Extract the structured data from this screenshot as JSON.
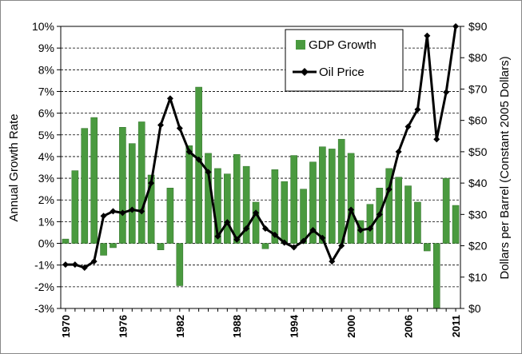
{
  "chart_data": {
    "type": "bar+line",
    "title": "",
    "ylabel_left": "Annual Growth Rate",
    "ylabel_right": "Dollars per Barrel (Constant 2005 Dollars)",
    "ylim_left": [
      -3,
      10
    ],
    "ylim_right": [
      0,
      90
    ],
    "grid": true,
    "legend_position": "top-right",
    "left_ticks": [
      "-3%",
      "-2%",
      "-1%",
      "0%",
      "1%",
      "2%",
      "3%",
      "4%",
      "5%",
      "6%",
      "7%",
      "8%",
      "9%",
      "10%"
    ],
    "right_ticks": [
      "$0",
      "$10",
      "$20",
      "$30",
      "$40",
      "$50",
      "$60",
      "$70",
      "$80",
      "$90"
    ],
    "x_tick_labels": [
      "1970",
      "1976",
      "1982",
      "1988",
      "1994",
      "2000",
      "2006",
      "2011"
    ],
    "years": [
      1970,
      1971,
      1972,
      1973,
      1974,
      1975,
      1976,
      1977,
      1978,
      1979,
      1980,
      1981,
      1982,
      1983,
      1984,
      1985,
      1986,
      1987,
      1988,
      1989,
      1990,
      1991,
      1992,
      1993,
      1994,
      1995,
      1996,
      1997,
      1998,
      1999,
      2000,
      2001,
      2002,
      2003,
      2004,
      2005,
      2006,
      2007,
      2008,
      2009,
      2010,
      2011
    ],
    "series": [
      {
        "name": "GDP Growth",
        "kind": "bar",
        "axis": "left",
        "color": "#4a9a3f",
        "values": [
          0.2,
          3.35,
          5.3,
          5.8,
          -0.55,
          -0.2,
          5.35,
          4.6,
          5.6,
          3.15,
          -0.3,
          2.55,
          -1.95,
          4.5,
          7.2,
          4.15,
          3.45,
          3.2,
          4.1,
          3.55,
          1.9,
          -0.25,
          3.4,
          2.85,
          4.05,
          2.5,
          3.75,
          4.45,
          4.35,
          4.8,
          4.15,
          1.05,
          1.8,
          2.55,
          3.45,
          3.05,
          2.65,
          1.9,
          -0.35,
          -3.0,
          3.0,
          1.75
        ]
      },
      {
        "name": "Oil Price",
        "kind": "line",
        "axis": "right",
        "color": "#000000",
        "values": [
          14,
          14,
          13,
          15,
          29.5,
          31,
          30.5,
          31.5,
          31,
          40,
          58.5,
          67,
          57.5,
          50,
          47.5,
          43.5,
          23,
          27.5,
          22,
          25.5,
          30.5,
          25.5,
          23.5,
          21,
          19.5,
          21.5,
          25,
          22.5,
          15,
          20,
          31.5,
          25,
          25.5,
          30,
          38,
          50,
          58,
          63.5,
          87,
          54,
          69,
          90
        ]
      }
    ]
  }
}
